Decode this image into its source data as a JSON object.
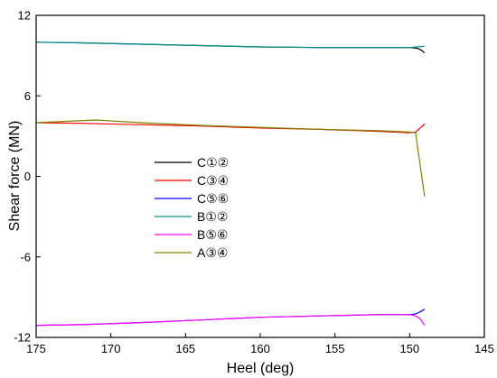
{
  "chart_data": {
    "type": "line",
    "xlabel": "Heel (deg)",
    "ylabel": "Shear force (MN)",
    "xlim": [
      175,
      145
    ],
    "ylim": [
      -12,
      12
    ],
    "x_reversed": true,
    "xticks": [
      "175",
      "170",
      "165",
      "160",
      "155",
      "150",
      "145"
    ],
    "yticks": [
      "-12",
      "-6",
      "0",
      "6",
      "12"
    ],
    "grid": false,
    "legend_position": "center-left",
    "series": [
      {
        "name": "C①②",
        "color": "#000000",
        "x": [
          175,
          172,
          168,
          164,
          160,
          156,
          152,
          150,
          149.5,
          149.2,
          149.0
        ],
        "y": [
          10.0,
          9.95,
          9.85,
          9.75,
          9.65,
          9.6,
          9.6,
          9.6,
          9.55,
          9.4,
          9.2
        ]
      },
      {
        "name": "C③④",
        "color": "#ff0000",
        "x": [
          175,
          172,
          168,
          164,
          160,
          156,
          152,
          150,
          149.6,
          149.3,
          149.0
        ],
        "y": [
          4.0,
          3.95,
          3.85,
          3.75,
          3.6,
          3.5,
          3.35,
          3.25,
          3.3,
          3.6,
          3.9
        ]
      },
      {
        "name": "C⑤⑥",
        "color": "#0000ff",
        "x": [
          175,
          172,
          168,
          164,
          160,
          156,
          152,
          150,
          149.6,
          149.3,
          149.0
        ],
        "y": [
          -11.1,
          -11.05,
          -10.9,
          -10.7,
          -10.5,
          -10.4,
          -10.3,
          -10.3,
          -10.25,
          -10.1,
          -9.9
        ]
      },
      {
        "name": "B①②",
        "color": "#009090",
        "x": [
          175,
          172,
          168,
          164,
          160,
          156,
          152,
          150,
          149.5,
          149.0
        ],
        "y": [
          10.0,
          9.95,
          9.85,
          9.75,
          9.65,
          9.6,
          9.6,
          9.6,
          9.65,
          9.7
        ]
      },
      {
        "name": "B⑤⑥",
        "color": "#ff00ff",
        "x": [
          175,
          172,
          168,
          164,
          160,
          156,
          152,
          150,
          149.6,
          149.3,
          149.0
        ],
        "y": [
          -11.1,
          -11.05,
          -10.9,
          -10.7,
          -10.5,
          -10.4,
          -10.3,
          -10.3,
          -10.4,
          -10.6,
          -11.1
        ]
      },
      {
        "name": "A③④",
        "color": "#7f8000",
        "x": [
          175,
          171,
          168,
          164,
          160,
          156,
          152,
          150,
          149.6,
          149.0
        ],
        "y": [
          4.0,
          4.2,
          4.0,
          3.8,
          3.65,
          3.5,
          3.4,
          3.3,
          3.25,
          -1.5
        ]
      }
    ]
  }
}
